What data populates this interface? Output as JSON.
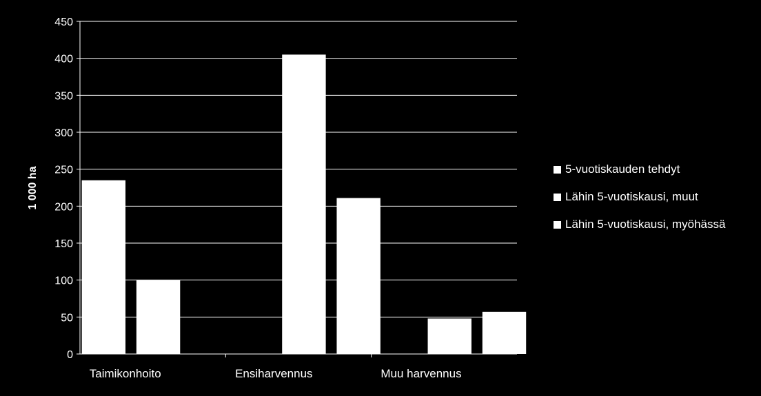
{
  "colors": {
    "background": "#000000",
    "bar": "#ffffff",
    "grid": "#ffffff",
    "text": "#ffffff"
  },
  "chart_data": {
    "type": "bar",
    "title": "",
    "xlabel": "",
    "ylabel": "1 000 ha",
    "ylim": [
      0,
      450
    ],
    "yticks": [
      0,
      50,
      100,
      150,
      200,
      250,
      300,
      350,
      400,
      450
    ],
    "grid": true,
    "legend_position": "right",
    "categories": [
      "Taimikonhoito",
      "Ensiharvennus",
      "Muu harvennus"
    ],
    "series": [
      {
        "name": "5-vuotiskauden tehdyt",
        "values": [
          235,
          0,
          0
        ]
      },
      {
        "name": "Lähin 5-vuotiskausi, muut",
        "values": [
          100,
          405,
          48
        ]
      },
      {
        "name": "Lähin 5-vuotiskausi, myöhässä",
        "values": [
          0,
          211,
          57
        ]
      }
    ]
  }
}
